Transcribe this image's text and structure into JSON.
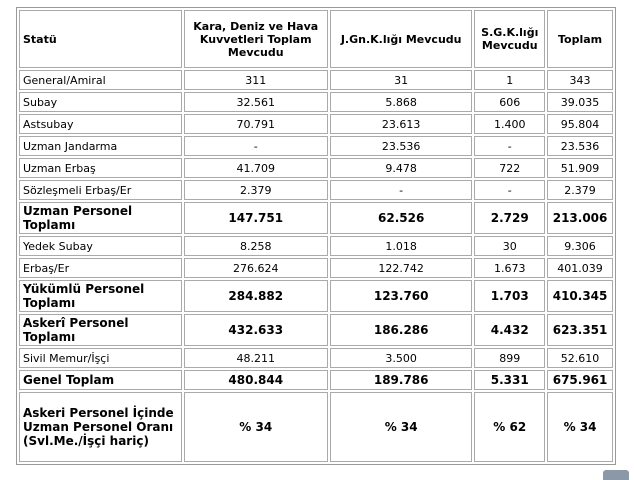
{
  "table": {
    "header": [
      "Statü",
      "Kara, Deniz ve Hava Kuvvetleri Toplam Mevcudu",
      "J.Gn.K.lığı Mevcudu",
      "S.G.K.lığı Mevcudu",
      "Toplam"
    ],
    "rows": [
      [
        "General/Amiral",
        "311",
        "31",
        "1",
        "343"
      ],
      [
        "Subay",
        "32.561",
        "5.868",
        "606",
        "39.035"
      ],
      [
        "Astsubay",
        "70.791",
        "23.613",
        "1.400",
        "95.804"
      ],
      [
        "Uzman Jandarma",
        "-",
        "23.536",
        "-",
        "23.536"
      ],
      [
        "Uzman Erbaş",
        "41.709",
        "9.478",
        "722",
        "51.909"
      ],
      [
        "Sözleşmeli Erbaş/Er",
        "2.379",
        "-",
        "-",
        "2.379"
      ],
      [
        "Uzman Personel Toplamı",
        "147.751",
        "62.526",
        "2.729",
        "213.006"
      ],
      [
        "Yedek Subay",
        "8.258",
        "1.018",
        "30",
        "9.306"
      ],
      [
        "Erbaş/Er",
        "276.624",
        "122.742",
        "1.673",
        "401.039"
      ],
      [
        "Yükümlü Personel Toplamı",
        "284.882",
        "123.760",
        "1.703",
        "410.345"
      ],
      [
        "Askerî Personel Toplamı",
        "432.633",
        "186.286",
        "4.432",
        "623.351"
      ],
      [
        "Sivil Memur/İşçi",
        "48.211",
        "3.500",
        "899",
        "52.610"
      ],
      [
        "Genel Toplam",
        "480.844",
        "189.786",
        "5.331",
        "675.961"
      ],
      [
        "Askeri Personel İçinde Uzman Personel Oranı (Svl.Me./İşçi hariç)",
        "% 34",
        "% 34",
        "% 62",
        "% 34"
      ]
    ]
  }
}
